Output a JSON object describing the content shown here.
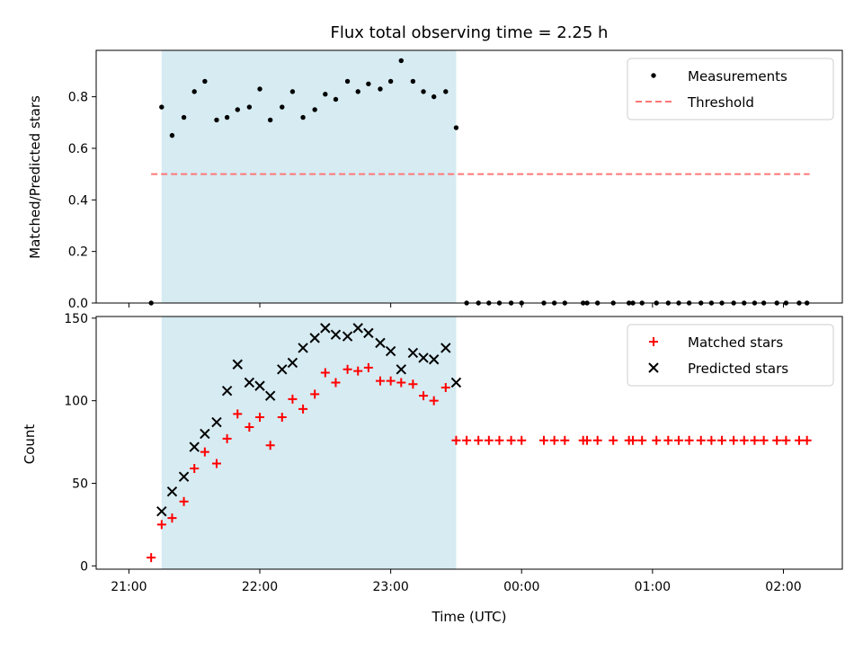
{
  "chart_data": [
    {
      "type": "scatter",
      "title": "Flux total observing time = 2.25 h",
      "xlabel": "",
      "ylabel": "Matched/Predicted stars",
      "x_unit": "hours since 21:00 UTC",
      "xlim": [
        -0.25,
        5.45
      ],
      "ylim": [
        0,
        0.98
      ],
      "yticks": [
        0.0,
        0.2,
        0.4,
        0.6,
        0.8
      ],
      "ytick_labels": [
        "0.0",
        "0.2",
        "0.4",
        "0.6",
        "0.8"
      ],
      "shaded_span": [
        0.25,
        2.5
      ],
      "threshold": {
        "name": "Threshold",
        "value": 0.5,
        "x": [
          0.17,
          5.2
        ],
        "color": "#ff7777",
        "style": "dashed"
      },
      "legend": {
        "placement": "top-right",
        "entries": [
          "Measurements",
          "Threshold"
        ]
      },
      "series": [
        {
          "name": "Measurements",
          "color": "#000000",
          "marker": "dot",
          "x": [
            0.17,
            0.25,
            0.33,
            0.42,
            0.5,
            0.58,
            0.67,
            0.75,
            0.83,
            0.92,
            1.0,
            1.08,
            1.17,
            1.25,
            1.33,
            1.42,
            1.5,
            1.58,
            1.67,
            1.75,
            1.83,
            1.92,
            2.0,
            2.08,
            2.17,
            2.25,
            2.33,
            2.42,
            2.5,
            2.58,
            2.67,
            2.75,
            2.83,
            2.92,
            3.0,
            3.17,
            3.25,
            3.33,
            3.47,
            3.5,
            3.58,
            3.7,
            3.82,
            3.85,
            3.92,
            4.03,
            4.12,
            4.2,
            4.28,
            4.37,
            4.45,
            4.53,
            4.62,
            4.7,
            4.78,
            4.85,
            4.95,
            5.02,
            5.12,
            5.18
          ],
          "y": [
            0.0,
            0.76,
            0.65,
            0.72,
            0.82,
            0.86,
            0.71,
            0.72,
            0.75,
            0.76,
            0.83,
            0.71,
            0.76,
            0.82,
            0.72,
            0.75,
            0.81,
            0.79,
            0.86,
            0.82,
            0.85,
            0.83,
            0.86,
            0.94,
            0.86,
            0.82,
            0.8,
            0.82,
            0.68,
            0.0,
            0.0,
            0.0,
            0.0,
            0.0,
            0.0,
            0.0,
            0.0,
            0.0,
            0.0,
            0.0,
            0.0,
            0.0,
            0.0,
            0.0,
            0.0,
            0.0,
            0.0,
            0.0,
            0.0,
            0.0,
            0.0,
            0.0,
            0.0,
            0.0,
            0.0,
            0.0,
            0.0,
            0.0,
            0.0,
            0.0
          ]
        }
      ]
    },
    {
      "type": "scatter",
      "title": "",
      "xlabel": "Time (UTC)",
      "ylabel": "Count",
      "x_unit": "hours since 21:00 UTC",
      "xlim": [
        -0.25,
        5.45
      ],
      "ylim": [
        -2,
        151
      ],
      "yticks": [
        0,
        50,
        100,
        150
      ],
      "ytick_labels": [
        "0",
        "50",
        "100",
        "150"
      ],
      "xticks": [
        0,
        1,
        2,
        3,
        4,
        5
      ],
      "xtick_labels": [
        "21:00",
        "22:00",
        "23:00",
        "00:00",
        "01:00",
        "02:00"
      ],
      "shaded_span": [
        0.25,
        2.5
      ],
      "legend": {
        "placement": "top-right",
        "entries": [
          "Matched stars",
          "Predicted stars"
        ]
      },
      "series": [
        {
          "name": "Matched stars",
          "color": "#ff0000",
          "marker": "plus",
          "x": [
            0.17,
            0.25,
            0.33,
            0.42,
            0.5,
            0.58,
            0.67,
            0.75,
            0.83,
            0.92,
            1.0,
            1.08,
            1.17,
            1.25,
            1.33,
            1.42,
            1.5,
            1.58,
            1.67,
            1.75,
            1.83,
            1.92,
            2.0,
            2.08,
            2.17,
            2.25,
            2.33,
            2.42,
            2.5,
            2.58,
            2.67,
            2.75,
            2.83,
            2.92,
            3.0,
            3.17,
            3.25,
            3.33,
            3.47,
            3.5,
            3.58,
            3.7,
            3.82,
            3.85,
            3.92,
            4.03,
            4.12,
            4.2,
            4.28,
            4.37,
            4.45,
            4.53,
            4.62,
            4.7,
            4.78,
            4.85,
            4.95,
            5.02,
            5.12,
            5.18
          ],
          "y": [
            5,
            25,
            29,
            39,
            59,
            69,
            62,
            77,
            92,
            84,
            90,
            73,
            90,
            101,
            95,
            104,
            117,
            111,
            119,
            118,
            120,
            112,
            112,
            111,
            110,
            103,
            100,
            108,
            76,
            76,
            76,
            76,
            76,
            76,
            76,
            76,
            76,
            76,
            76,
            76,
            76,
            76,
            76,
            76,
            76,
            76,
            76,
            76,
            76,
            76,
            76,
            76,
            76,
            76,
            76,
            76,
            76,
            76,
            76,
            76
          ]
        },
        {
          "name": "Predicted stars",
          "color": "#000000",
          "marker": "x",
          "x": [
            0.25,
            0.33,
            0.42,
            0.5,
            0.58,
            0.67,
            0.75,
            0.83,
            0.92,
            1.0,
            1.08,
            1.17,
            1.25,
            1.33,
            1.42,
            1.5,
            1.58,
            1.67,
            1.75,
            1.83,
            1.92,
            2.0,
            2.08,
            2.17,
            2.25,
            2.33,
            2.42,
            2.5
          ],
          "y": [
            33,
            45,
            54,
            72,
            80,
            87,
            106,
            122,
            111,
            109,
            103,
            119,
            123,
            132,
            138,
            144,
            140,
            139,
            144,
            141,
            135,
            130,
            119,
            129,
            126,
            125,
            132,
            111
          ]
        }
      ]
    }
  ]
}
